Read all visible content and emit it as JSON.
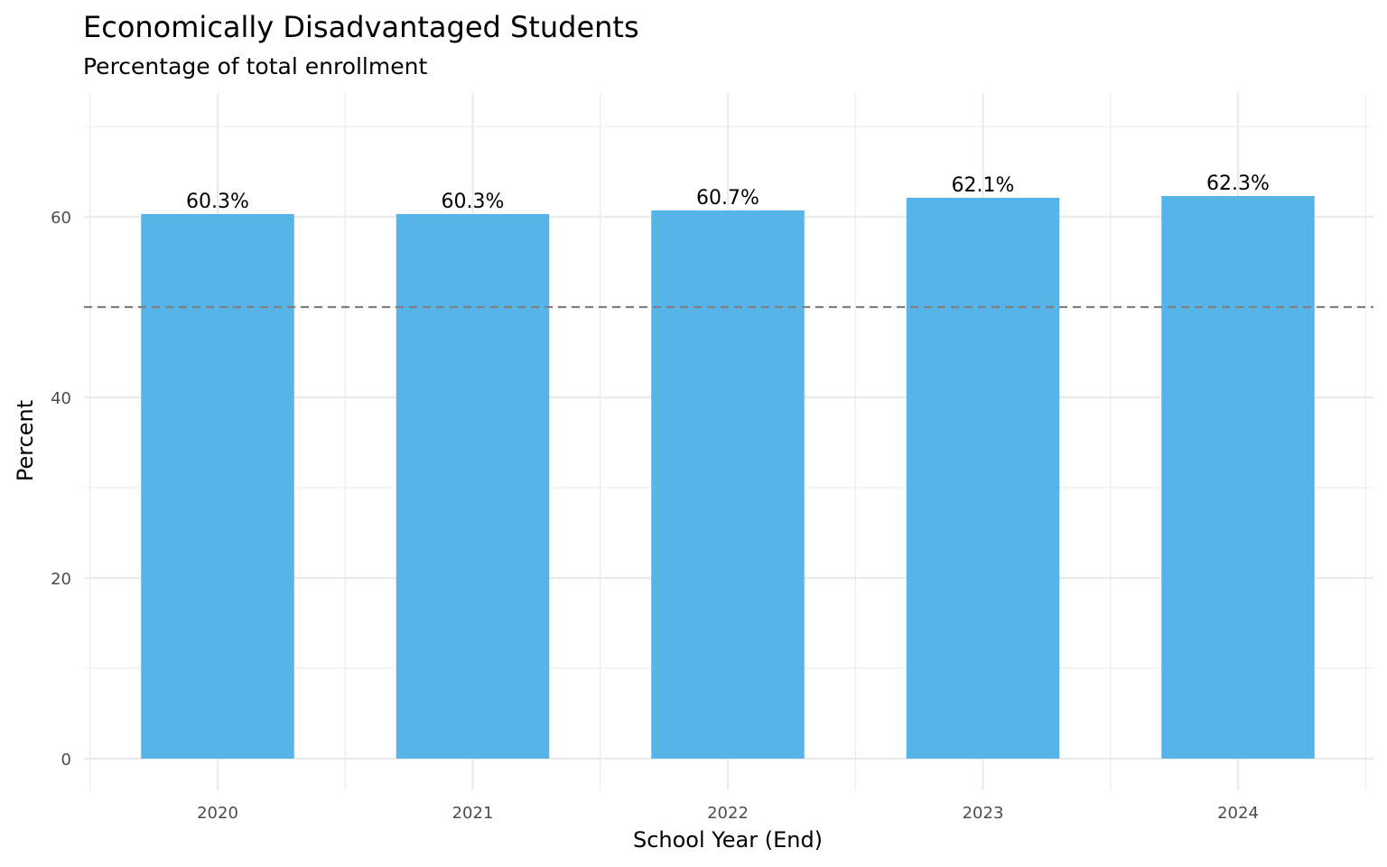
{
  "chart_data": {
    "type": "bar",
    "title": "Economically Disadvantaged Students",
    "subtitle": "Percentage of total enrollment",
    "xlabel": "School Year (End)",
    "ylabel": "Percent",
    "categories": [
      "2020",
      "2021",
      "2022",
      "2023",
      "2024"
    ],
    "values": [
      60.3,
      60.3,
      60.7,
      62.1,
      62.3
    ],
    "data_labels": [
      "60.3%",
      "60.3%",
      "60.7%",
      "62.1%",
      "62.3%"
    ],
    "yticks": [
      0,
      20,
      40,
      60
    ],
    "ylim": [
      0,
      70
    ],
    "reference_line": {
      "value": 50,
      "style": "dashed",
      "color": "#808080"
    },
    "bar_color": "#56B4E9",
    "grid": true,
    "legend": "none"
  }
}
